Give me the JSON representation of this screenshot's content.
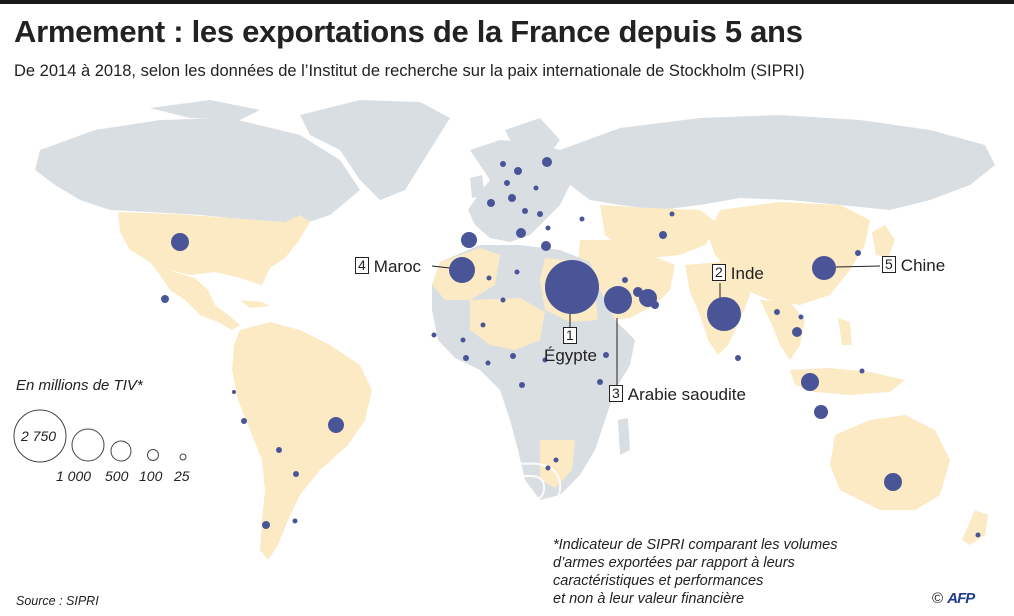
{
  "title": "Armement : les exportations de la France depuis 5 ans",
  "subtitle": "De 2014 à 2018, selon les données de l’Institut de recherche sur la paix internationale de Stockholm (SIPRI)",
  "legend": {
    "title": "En millions de TIV*",
    "sizes": [
      {
        "value": 2750,
        "label": "2 750"
      },
      {
        "value": 1000,
        "label": "1 000"
      },
      {
        "value": 500,
        "label": "500"
      },
      {
        "value": 100,
        "label": "100"
      },
      {
        "value": 25,
        "label": "25"
      }
    ]
  },
  "top_countries": [
    {
      "rank": "1",
      "name": "Égypte"
    },
    {
      "rank": "2",
      "name": "Inde"
    },
    {
      "rank": "3",
      "name": "Arabie saoudite"
    },
    {
      "rank": "4",
      "name": "Maroc"
    },
    {
      "rank": "5",
      "name": "Chine"
    }
  ],
  "note": [
    "*Indicateur de SIPRI comparant les volumes",
    "d’armes exportées par rapport à leurs",
    "caractéristiques et performances",
    "et non à leur valeur financière"
  ],
  "source": "Source : SIPRI",
  "credit": {
    "symbol": "©",
    "agency": "AFP"
  },
  "colors": {
    "ocean": "#ffffff",
    "land_other": "#d9dee3",
    "land_importer": "#fbeac4",
    "bubble": "#4a5597",
    "border": "#ffffff"
  }
}
